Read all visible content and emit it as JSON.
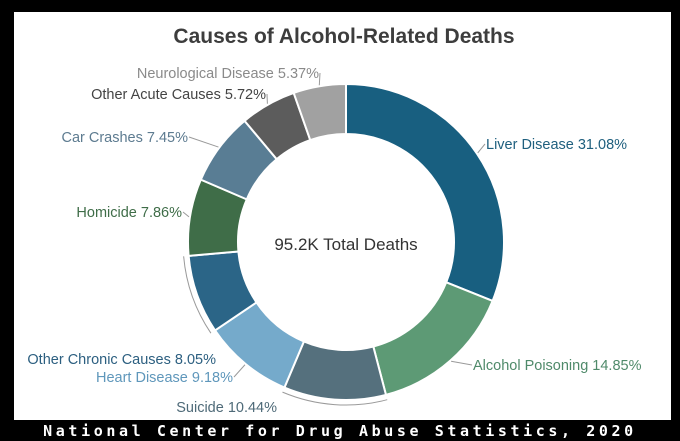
{
  "chart_data": {
    "type": "pie",
    "title": "Causes of Alcohol-Related Deaths",
    "center_label": "95.2K Total Deaths",
    "slices": [
      {
        "label": "Liver Disease",
        "value": 31.08,
        "label_text": "Liver Disease 31.08%",
        "color": "#185f80",
        "label_color": "#1e5f7e"
      },
      {
        "label": "Alcohol Poisoning",
        "value": 14.85,
        "label_text": "Alcohol Poisoning 14.85%",
        "color": "#5d9a75",
        "label_color": "#4f8a6a"
      },
      {
        "label": "Suicide",
        "value": 10.44,
        "label_text": "Suicide 10.44%",
        "color": "#55707d",
        "label_color": "#4e6a78"
      },
      {
        "label": "Heart Disease",
        "value": 9.18,
        "label_text": "Heart Disease 9.18%",
        "color": "#75aacb",
        "label_color": "#5f97bb"
      },
      {
        "label": "Other Chronic Causes",
        "value": 8.05,
        "label_text": "Other Chronic Causes 8.05%",
        "color": "#2b6587",
        "label_color": "#2c5f80"
      },
      {
        "label": "Homicide",
        "value": 7.86,
        "label_text": "Homicide 7.86%",
        "color": "#3f6d48",
        "label_color": "#3f6d48"
      },
      {
        "label": "Car Crashes",
        "value": 7.45,
        "label_text": "Car Crashes 7.45%",
        "color": "#597d94",
        "label_color": "#5d7b90"
      },
      {
        "label": "Other Acute Causes",
        "value": 5.72,
        "label_text": "Other Acute Causes 5.72%",
        "color": "#5c5c5c",
        "label_color": "#444444"
      },
      {
        "label": "Neurological Disease",
        "value": 5.37,
        "label_text": "Neurological Disease 5.37%",
        "color": "#a1a1a1",
        "label_color": "#8a8a8a"
      }
    ]
  },
  "footer": {
    "source": "National Center for Drug Abuse Statistics, 2020"
  }
}
